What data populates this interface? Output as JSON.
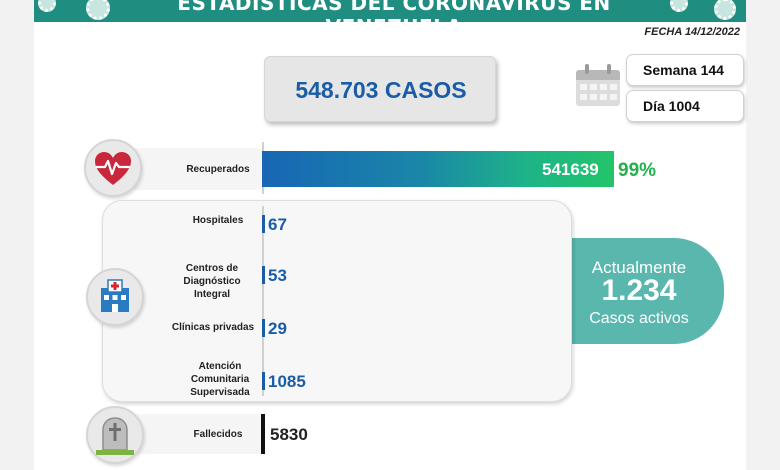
{
  "header": {
    "title": "ESTADÍSTICAS DEL CORONAVIRUS EN VENEZUELA",
    "date": "FECHA 14/12/2022"
  },
  "total": {
    "label": "548.703 CASOS"
  },
  "calendar": {
    "week": "Semana 144",
    "day": "Día 1004"
  },
  "recovered": {
    "label": "Recuperados",
    "value": "541639",
    "percent": "99%",
    "fraction": 0.99
  },
  "facilities": [
    {
      "label": "Hospitales",
      "value": "67"
    },
    {
      "label": "Centros de Diagnóstico Integral",
      "value": "53"
    },
    {
      "label": "Clínicas privadas",
      "value": "29"
    },
    {
      "label": "Atención Comunitaria Supervisada",
      "value": "1085"
    }
  ],
  "active": {
    "line1": "Actualmente",
    "value": "1.234",
    "line2": "Casos activos"
  },
  "deaths": {
    "label": "Fallecidos",
    "value": "5830"
  },
  "colors": {
    "header": "#1f8d80",
    "accent_blue": "#1a5da6",
    "recovered_green": "#22b14c",
    "active_teal": "#59b7ae",
    "heart_red": "#c8273c"
  },
  "icons": {
    "header": "virus-icon",
    "recovered": "heart-pulse-icon",
    "calendar": "calendar-icon",
    "facilities": "hospital-building-icon",
    "deaths": "grave-cross-icon"
  }
}
